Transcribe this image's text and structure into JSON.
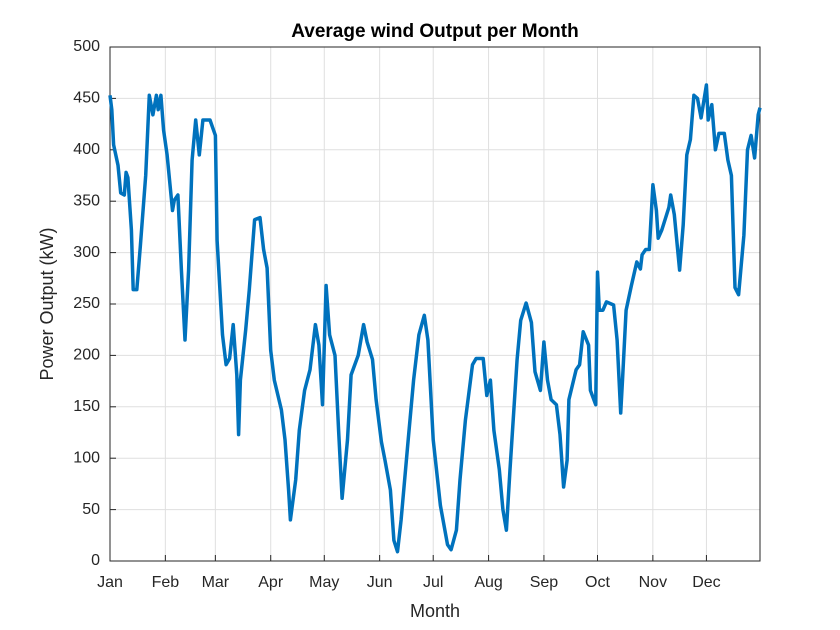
{
  "chart_data": {
    "type": "line",
    "title": "Average wind Output per Month",
    "xlabel": "Month",
    "ylabel": "Power Output (kW)",
    "color": "#0072bd",
    "grid": true,
    "xlim": [
      0,
      364
    ],
    "ylim": [
      0,
      500
    ],
    "yticks": [
      0,
      50,
      100,
      150,
      200,
      250,
      300,
      350,
      400,
      450,
      500
    ],
    "xticks": [
      {
        "value": 0,
        "label": "Jan"
      },
      {
        "value": 31,
        "label": "Feb"
      },
      {
        "value": 59,
        "label": "Mar"
      },
      {
        "value": 90,
        "label": "Apr"
      },
      {
        "value": 120,
        "label": "May"
      },
      {
        "value": 151,
        "label": "Jun"
      },
      {
        "value": 181,
        "label": "Jul"
      },
      {
        "value": 212,
        "label": "Aug"
      },
      {
        "value": 243,
        "label": "Sep"
      },
      {
        "value": 273,
        "label": "Oct"
      },
      {
        "value": 304,
        "label": "Nov"
      },
      {
        "value": 334,
        "label": "Dec"
      }
    ],
    "x": [
      0,
      1,
      2,
      4.5,
      6,
      8,
      9,
      10,
      12,
      13,
      15,
      17,
      20,
      22,
      24,
      26,
      27,
      28.5,
      30,
      32,
      35,
      36,
      38,
      40,
      42,
      44,
      46,
      48,
      50,
      52,
      56,
      58,
      59,
      60,
      63,
      65,
      67,
      69,
      71,
      72,
      73,
      76,
      78,
      81,
      84,
      86,
      88,
      90,
      92,
      96,
      98,
      100,
      101,
      104,
      106,
      109,
      112,
      115,
      117,
      119,
      121,
      123,
      126,
      128,
      130,
      133,
      135,
      139,
      142,
      144,
      147,
      149,
      152,
      154,
      157,
      159,
      161,
      163,
      167,
      170,
      173,
      176,
      178,
      181,
      185,
      189,
      191,
      194,
      196,
      199,
      203,
      205,
      209,
      211,
      213,
      215,
      218,
      220,
      222,
      224,
      228,
      230,
      233,
      236,
      238,
      241,
      243,
      245,
      247,
      250,
      252,
      254,
      256,
      257,
      261,
      263,
      265,
      268,
      269,
      272,
      273,
      274,
      276,
      278,
      282,
      284,
      286,
      287,
      289,
      292,
      295,
      297,
      298,
      300,
      302,
      304,
      306,
      307,
      309,
      313,
      314,
      316,
      319,
      321,
      323,
      325,
      327,
      329,
      331,
      334,
      335,
      337,
      339,
      341,
      344,
      346,
      348,
      350,
      352,
      355,
      357,
      359,
      361,
      363,
      364
    ],
    "values": [
      453,
      439,
      405,
      385,
      358,
      356,
      378,
      373,
      322,
      264,
      264,
      307,
      375,
      453,
      434,
      453,
      439,
      453,
      419,
      395,
      341,
      351,
      356,
      283,
      215,
      283,
      390,
      429,
      395,
      429,
      429,
      419,
      414,
      312,
      220,
      191,
      197,
      230,
      181,
      123,
      176,
      225,
      264,
      332,
      334,
      303,
      285,
      205,
      176,
      147,
      118,
      69,
      40,
      79,
      127,
      166,
      186,
      230,
      210,
      152,
      268,
      220,
      200,
      127,
      61,
      118,
      181,
      200,
      230,
      213,
      196,
      157,
      116,
      98,
      69,
      20,
      9,
      40,
      118,
      176,
      220,
      239,
      215,
      118,
      54,
      16,
      11,
      30,
      79,
      137,
      191,
      197,
      197,
      161,
      176,
      127,
      89,
      50,
      30,
      89,
      196,
      234,
      251,
      232,
      184,
      166,
      213,
      176,
      157,
      152,
      123,
      72,
      98,
      157,
      186,
      191,
      223,
      210,
      166,
      152,
      281,
      244,
      244,
      252,
      249,
      215,
      144,
      176,
      244,
      268,
      291,
      284,
      298,
      303,
      303,
      366,
      341,
      314,
      322,
      344,
      356,
      337,
      283,
      327,
      395,
      410,
      453,
      450,
      431,
      463,
      429,
      444,
      400,
      416,
      416,
      390,
      375,
      266,
      259,
      317,
      400,
      414,
      392,
      434,
      441
    ]
  }
}
